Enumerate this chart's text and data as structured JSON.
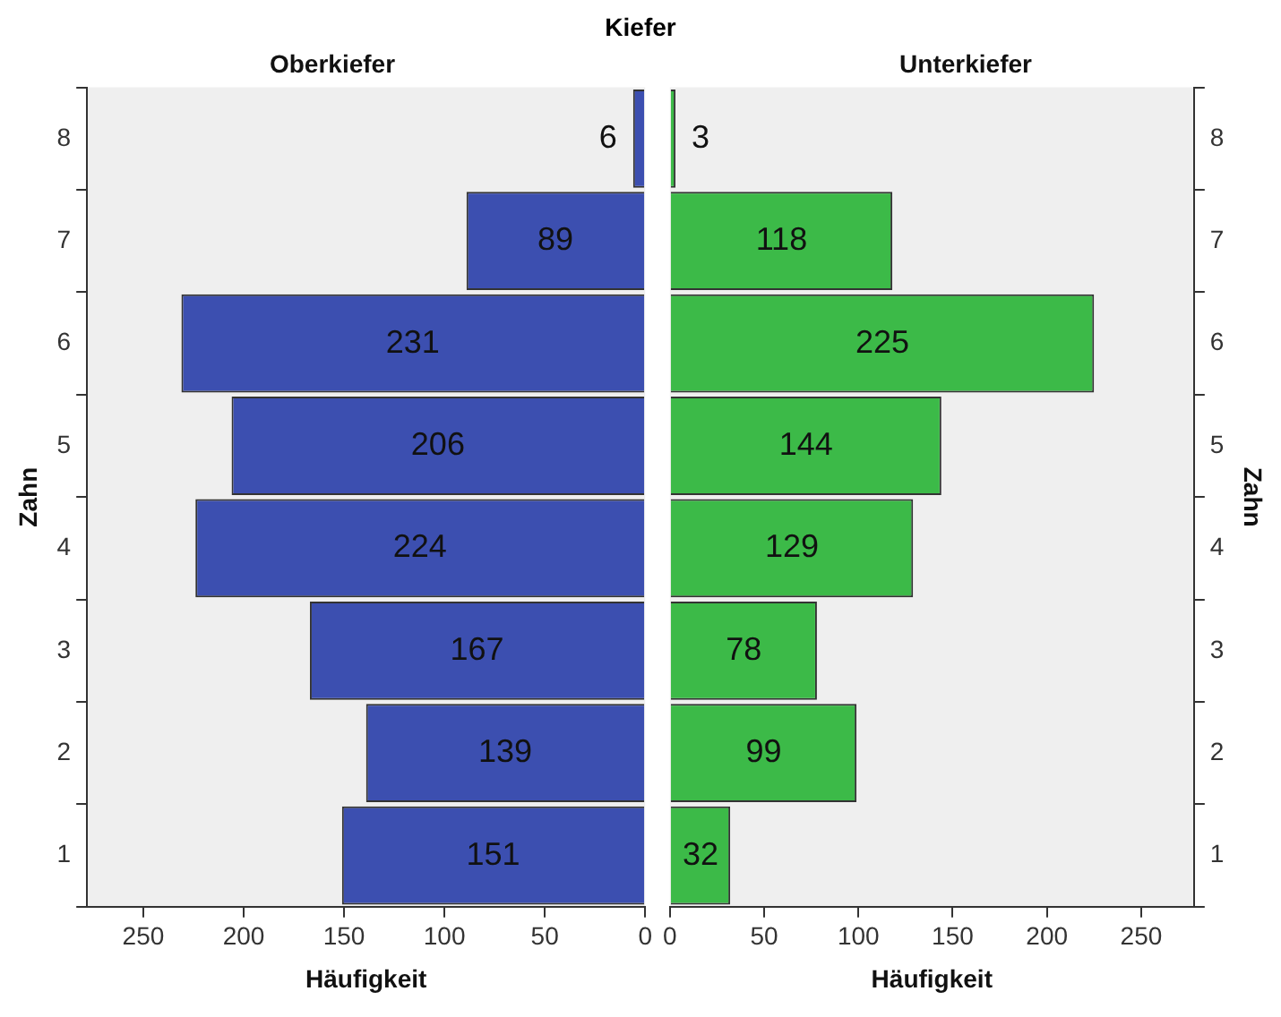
{
  "chart_data": [
    {
      "type": "bar",
      "orientation": "horizontal",
      "title": "Kiefer",
      "subtitle": "Oberkiefer",
      "xlabel": "Häufigkeit",
      "ylabel": "Zahn",
      "categories": [
        "8",
        "7",
        "6",
        "5",
        "4",
        "3",
        "2",
        "1"
      ],
      "values": [
        6,
        89,
        231,
        206,
        224,
        167,
        139,
        151
      ],
      "color": "#3c4fb0",
      "xlim": [
        278,
        0
      ],
      "xticks": [
        250,
        200,
        150,
        100,
        50,
        0
      ],
      "data_labels": true,
      "grid": false,
      "legend": false
    },
    {
      "type": "bar",
      "orientation": "horizontal",
      "subtitle": "Unterkiefer",
      "xlabel": "Häufigkeit",
      "ylabel": "Zahn",
      "categories": [
        "8",
        "7",
        "6",
        "5",
        "4",
        "3",
        "2",
        "1"
      ],
      "values": [
        3,
        118,
        225,
        144,
        129,
        78,
        99,
        32
      ],
      "color": "#3cba48",
      "xlim": [
        0,
        278
      ],
      "xticks": [
        0,
        50,
        100,
        150,
        200,
        250
      ],
      "data_labels": true,
      "grid": false,
      "legend": false
    }
  ]
}
